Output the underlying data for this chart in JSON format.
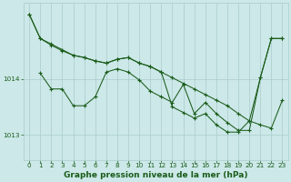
{
  "background_color": "#cce8e8",
  "grid_color": "#aacccc",
  "line_color": "#1a5c1a",
  "marker_color": "#1a5c1a",
  "xlabel": "Graphe pression niveau de la mer (hPa)",
  "xlabel_fontsize": 6.5,
  "xlabel_color": "#1a5c1a",
  "ylabel_ticks": [
    1013,
    1014
  ],
  "xlim": [
    -0.5,
    23.5
  ],
  "ylim": [
    1012.55,
    1015.35
  ],
  "tick_fontsize": 5.2,
  "tick_color": "#1a5c1a",
  "series1_x": [
    0,
    1,
    2,
    3,
    4,
    5,
    6,
    7,
    8,
    9,
    10,
    11,
    12,
    13,
    14,
    15,
    16,
    17,
    18,
    19,
    20,
    21,
    22,
    23
  ],
  "series1_y": [
    1015.15,
    1014.72,
    1014.6,
    1014.5,
    1014.42,
    1014.38,
    1014.32,
    1014.28,
    1014.35,
    1014.38,
    1014.28,
    1014.22,
    1014.12,
    1014.02,
    1013.92,
    1013.82,
    1013.72,
    1013.62,
    1013.52,
    1013.38,
    1013.25,
    1013.18,
    1013.12,
    1013.62
  ],
  "series2_x": [
    1,
    2,
    3,
    4,
    5,
    6,
    7,
    8,
    9,
    10,
    11,
    12,
    13,
    14,
    15,
    16,
    17,
    18,
    19,
    20,
    21,
    22,
    23
  ],
  "series2_y": [
    1014.1,
    1013.82,
    1013.82,
    1013.52,
    1013.52,
    1013.68,
    1014.12,
    1014.18,
    1014.12,
    1013.98,
    1013.78,
    1013.68,
    1013.58,
    1013.9,
    1013.38,
    1013.58,
    1013.38,
    1013.22,
    1013.08,
    1013.08,
    1014.02,
    1014.72,
    1014.72
  ],
  "series3_x": [
    0,
    1,
    2,
    3,
    4,
    5,
    6,
    7,
    8,
    9,
    10,
    11,
    12,
    13,
    14,
    15,
    16,
    17,
    18,
    19,
    20,
    21,
    22,
    23
  ],
  "series3_y": [
    1015.15,
    1014.72,
    1014.62,
    1014.52,
    1014.42,
    1014.38,
    1014.32,
    1014.28,
    1014.35,
    1014.38,
    1014.28,
    1014.22,
    1014.12,
    1013.5,
    1013.4,
    1013.3,
    1013.38,
    1013.18,
    1013.05,
    1013.05,
    1013.25,
    1014.02,
    1014.72,
    1014.72
  ]
}
